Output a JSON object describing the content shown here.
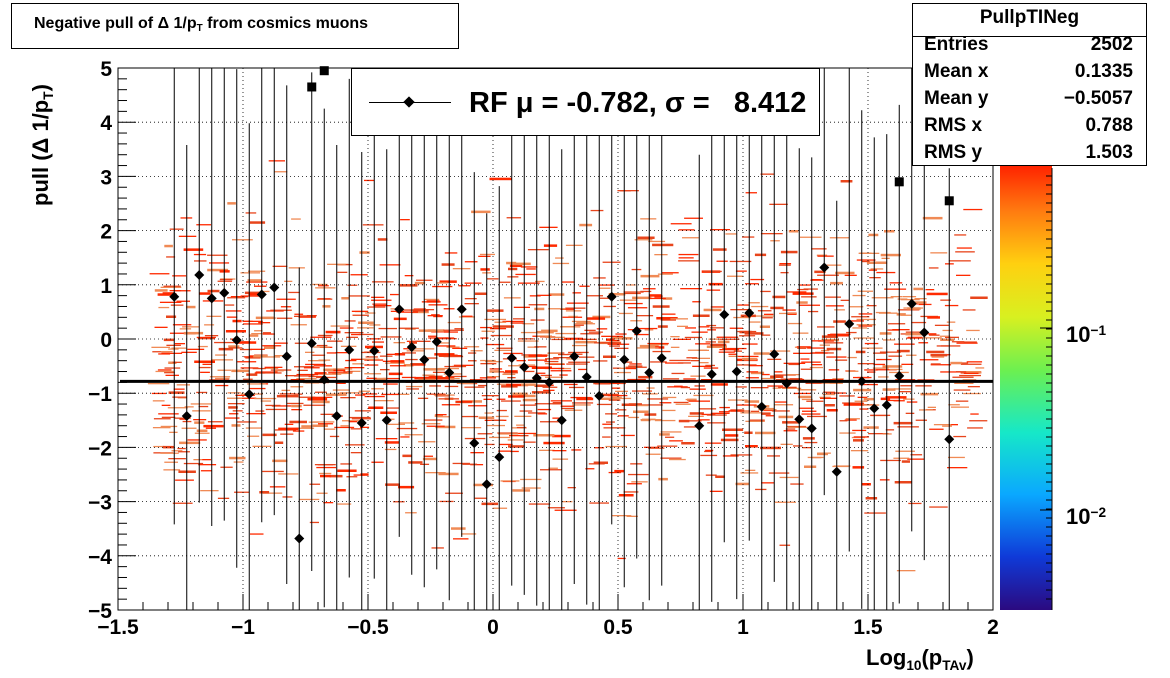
{
  "title": "Negative pull of Δ 1/p",
  "title_sub": "T",
  "title_tail": " from cosmics muons",
  "stats": {
    "name": "PullpTINeg",
    "rows": [
      {
        "label": "Entries",
        "value": "2502"
      },
      {
        "label": "Mean x",
        "value": "0.1335"
      },
      {
        "label": "Mean y",
        "value": "−0.5057"
      },
      {
        "label": "RMS x",
        "value": "0.788"
      },
      {
        "label": "RMS y",
        "value": "1.503"
      }
    ]
  },
  "legend": {
    "text": "RF μ = -0.782, σ =   8.412"
  },
  "y_title": {
    "main": "pull (Δ 1/p",
    "sub": "T",
    "tail": ")"
  },
  "x_title": {
    "main": "Log",
    "sub": "10",
    "mid": "(p",
    "sub2": "TAv",
    "tail": ")"
  },
  "z_labels": [
    {
      "base": "10",
      "exp": "−1"
    },
    {
      "base": "10",
      "exp": "−2"
    }
  ],
  "colors": {
    "bins": "#ff2a00",
    "bins_alt": "#e8451c",
    "line": "#000000"
  },
  "chart_data": {
    "type": "scatter",
    "xlabel": "Log10(pTAv)",
    "ylabel": "pull (Δ 1/pT)",
    "xlim": [
      -1.5,
      2
    ],
    "ylim": [
      -5,
      5
    ],
    "x_ticks": [
      "−1.5",
      "−1",
      "−0.5",
      "0",
      "0.5",
      "1",
      "1.5",
      "2"
    ],
    "y_ticks": [
      "−5",
      "−4",
      "−3",
      "−2",
      "−1",
      "0",
      "1",
      "2",
      "3",
      "4",
      "5"
    ],
    "grid": true,
    "fit_mean": -0.782,
    "fit_sigma": 8.412,
    "profile_points": [
      {
        "x": -1.275,
        "y": 0.78
      },
      {
        "x": -1.225,
        "y": -1.42
      },
      {
        "x": -1.175,
        "y": 1.18
      },
      {
        "x": -1.125,
        "y": 0.75
      },
      {
        "x": -1.075,
        "y": 0.85
      },
      {
        "x": -1.025,
        "y": -0.02
      },
      {
        "x": -0.975,
        "y": -1.02
      },
      {
        "x": -0.925,
        "y": 0.82
      },
      {
        "x": -0.875,
        "y": 0.95
      },
      {
        "x": -0.825,
        "y": -0.32
      },
      {
        "x": -0.775,
        "y": -3.68
      },
      {
        "x": -0.725,
        "y": -0.08
      },
      {
        "x": -0.675,
        "y": -0.75
      },
      {
        "x": -0.625,
        "y": -1.42
      },
      {
        "x": -0.575,
        "y": -0.2
      },
      {
        "x": -0.525,
        "y": -1.55
      },
      {
        "x": -0.475,
        "y": -0.22
      },
      {
        "x": -0.425,
        "y": -1.5
      },
      {
        "x": -0.375,
        "y": 0.55
      },
      {
        "x": -0.325,
        "y": -0.15
      },
      {
        "x": -0.275,
        "y": -0.38
      },
      {
        "x": -0.225,
        "y": -0.05
      },
      {
        "x": -0.175,
        "y": -0.62
      },
      {
        "x": -0.125,
        "y": 0.55
      },
      {
        "x": -0.075,
        "y": -1.92
      },
      {
        "x": -0.025,
        "y": -2.68
      },
      {
        "x": 0.025,
        "y": -2.18
      },
      {
        "x": 0.075,
        "y": -0.35
      },
      {
        "x": 0.125,
        "y": -0.52
      },
      {
        "x": 0.175,
        "y": -0.72
      },
      {
        "x": 0.225,
        "y": -0.8
      },
      {
        "x": 0.275,
        "y": -1.5
      },
      {
        "x": 0.325,
        "y": -0.32
      },
      {
        "x": 0.375,
        "y": -0.7
      },
      {
        "x": 0.425,
        "y": -1.05
      },
      {
        "x": 0.475,
        "y": 0.78
      },
      {
        "x": 0.525,
        "y": -0.38
      },
      {
        "x": 0.575,
        "y": 0.15
      },
      {
        "x": 0.625,
        "y": -0.62
      },
      {
        "x": 0.675,
        "y": -0.35
      },
      {
        "x": 0.825,
        "y": -1.6
      },
      {
        "x": 0.875,
        "y": -0.65
      },
      {
        "x": 0.925,
        "y": 0.45
      },
      {
        "x": 0.975,
        "y": -0.6
      },
      {
        "x": 1.025,
        "y": 0.48
      },
      {
        "x": 1.075,
        "y": -1.25
      },
      {
        "x": 1.125,
        "y": -0.28
      },
      {
        "x": 1.175,
        "y": -0.82
      },
      {
        "x": 1.225,
        "y": -1.48
      },
      {
        "x": 1.275,
        "y": -1.65
      },
      {
        "x": 1.325,
        "y": 1.32
      },
      {
        "x": 1.375,
        "y": -2.45
      },
      {
        "x": 1.425,
        "y": 0.28
      },
      {
        "x": 1.475,
        "y": -0.78
      },
      {
        "x": 1.525,
        "y": -1.28
      },
      {
        "x": 1.575,
        "y": -1.22
      },
      {
        "x": 1.625,
        "y": -0.68
      },
      {
        "x": 1.675,
        "y": 0.65
      },
      {
        "x": 1.725,
        "y": 0.12
      },
      {
        "x": 1.825,
        "y": -1.85
      }
    ],
    "overflow_points": [
      {
        "x": -0.725,
        "y": 4.65
      },
      {
        "x": -0.675,
        "y": 4.95
      },
      {
        "x": 1.625,
        "y": 2.9
      },
      {
        "x": 1.825,
        "y": 2.55
      }
    ]
  }
}
